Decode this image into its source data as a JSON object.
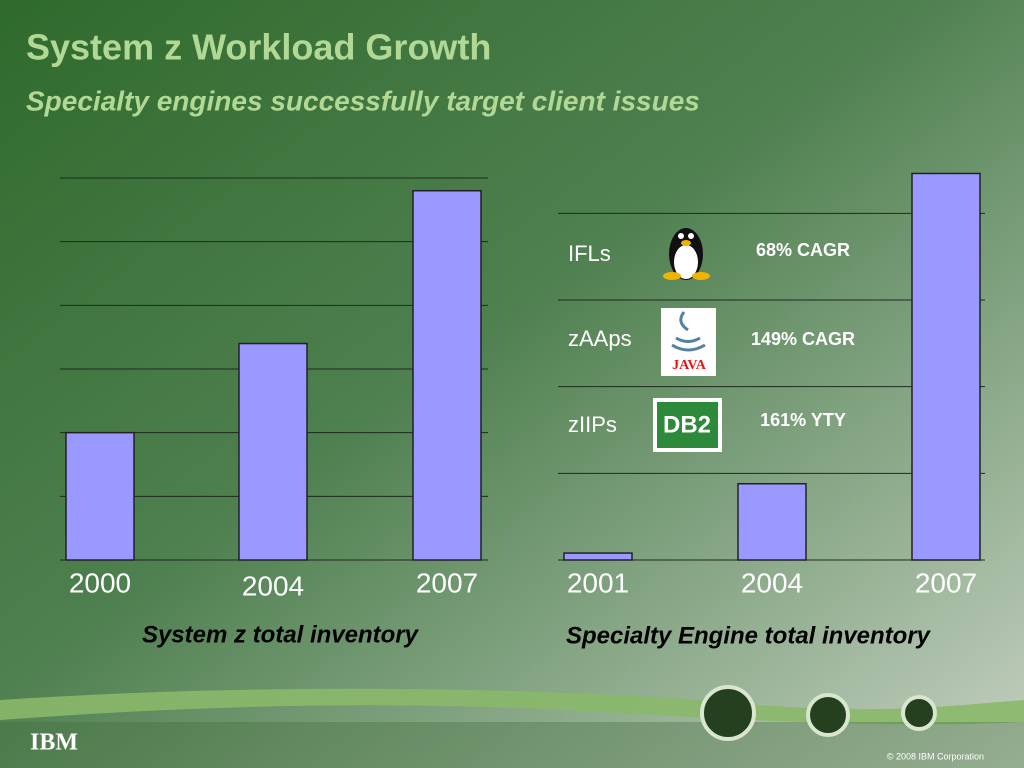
{
  "header": {
    "title": "System z Workload Growth",
    "subtitle": "Specialty engines successfully target client issues"
  },
  "chart_data": [
    {
      "type": "bar",
      "categories": [
        "2000",
        "2004",
        "2007"
      ],
      "values": [
        2,
        3.4,
        5.8
      ],
      "color": "#9999ff",
      "xlabel": "System z total inventory",
      "ylim": [
        0,
        6
      ],
      "yticks": [
        0,
        1,
        2,
        3,
        4,
        5,
        6
      ],
      "grid": true
    },
    {
      "type": "bar",
      "categories": [
        "2001",
        "2004",
        "2007"
      ],
      "values": [
        0.08,
        0.88,
        4.46
      ],
      "color": "#9999ff",
      "xlabel": "Specialty Engine total inventory",
      "ylim": [
        0,
        4.5
      ],
      "yticks": [
        0,
        1,
        2,
        3,
        4
      ],
      "grid": true,
      "annotations": [
        {
          "label": "IFLs",
          "note": "68% CAGR"
        },
        {
          "label": "zAAps",
          "note": "149% CAGR",
          "logo": "JAVA"
        },
        {
          "label": "zIIPs",
          "note": "161% YTY",
          "logo": "DB2"
        }
      ]
    }
  ],
  "footer": {
    "logo": "IBM",
    "copyright": "© 2008 IBM Corporation"
  }
}
